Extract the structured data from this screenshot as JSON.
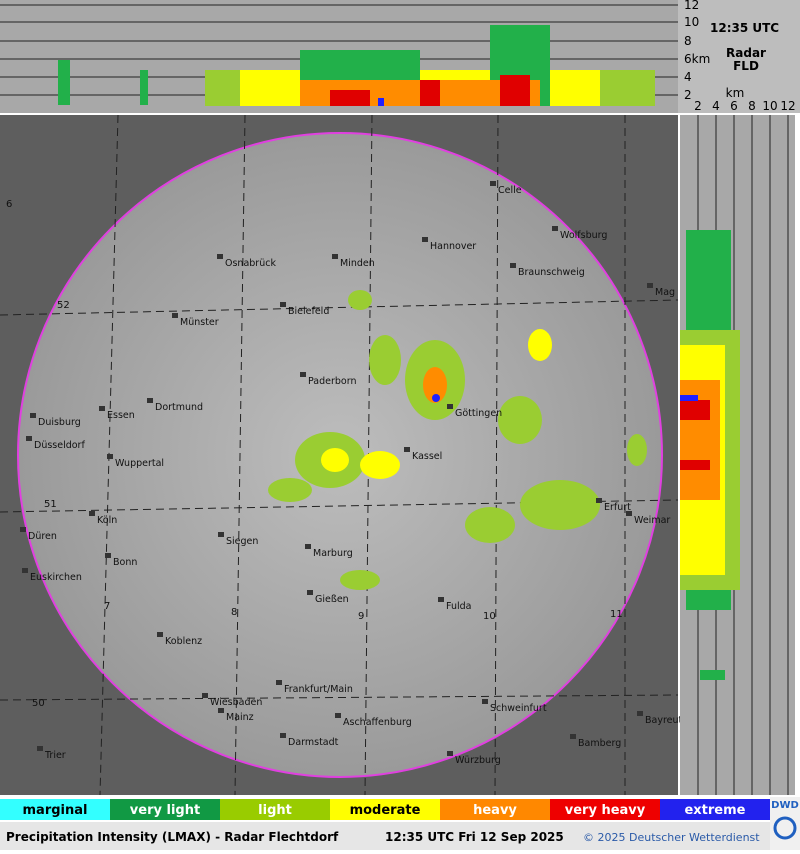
{
  "top_panel": {
    "heights": [
      "12",
      "10",
      "8",
      "6km",
      "4",
      "2"
    ],
    "time": "12:35 UTC",
    "radar": "Radar",
    "station": "FLD"
  },
  "side_panel": {
    "ranges": [
      "2",
      "4",
      "6",
      "8",
      "10",
      "12"
    ],
    "unit": "km"
  },
  "map": {
    "cities": [
      "Celle",
      "Hannover",
      "Wolfsburg",
      "Braunschweig",
      "Mag",
      "Osnabrück",
      "Minden",
      "Bielefeld",
      "Münster",
      "Paderborn",
      "Göttingen",
      "Essen",
      "Dortmund",
      "Duisburg",
      "Düsseldorf",
      "Wuppertal",
      "Kassel",
      "Erfurt",
      "Weimar",
      "Köln",
      "Düren",
      "Siegen",
      "Marburg",
      "Bonn",
      "Euskirchen",
      "Gießen",
      "Fulda",
      "Koblenz",
      "Frankfurt/Main",
      "Wiesbaden",
      "Aschaffenburg",
      "Schweinfurt",
      "Mainz",
      "Bayreuth",
      "Darmstadt",
      "Bamberg",
      "Trier",
      "Würzburg"
    ],
    "grid_labels": [
      "6",
      "52",
      "51",
      "7",
      "8",
      "9",
      "10",
      "11",
      "50"
    ]
  },
  "legend": [
    "marginal",
    "very light",
    "light",
    "moderate",
    "heavy",
    "very heavy",
    "extreme"
  ],
  "footer": {
    "product": "Precipitation Intensity (LMAX) - Radar Flechtdorf",
    "datetime": "12:35 UTC Fri 12 Sep 2025",
    "copyright": "© 2025 Deutscher Wetterdienst",
    "logo": "DWD"
  }
}
